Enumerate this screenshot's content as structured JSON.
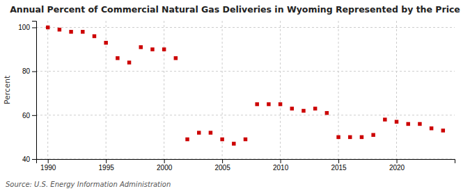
{
  "chart_data": {
    "type": "scatter",
    "title": "Annual Percent of Commercial Natural Gas Deliveries in Wyoming Represented by the Price",
    "ylabel": "Percent",
    "source": "Source: U.S. Energy Information Administration",
    "x": [
      1990,
      1991,
      1992,
      1993,
      1994,
      1995,
      1996,
      1997,
      1998,
      1999,
      2000,
      2001,
      2002,
      2003,
      2004,
      2005,
      2006,
      2007,
      2008,
      2009,
      2010,
      2011,
      2012,
      2013,
      2014,
      2015,
      2016,
      2017,
      2018,
      2019,
      2020,
      2021,
      2022,
      2023,
      2024
    ],
    "values": [
      100,
      99,
      98,
      98,
      96,
      93,
      86,
      84,
      91,
      90,
      90,
      86,
      49,
      52,
      52,
      49,
      47,
      49,
      65,
      65,
      65,
      63,
      62,
      63,
      61,
      50,
      50,
      50,
      51,
      58,
      57,
      56,
      56,
      54,
      53
    ],
    "color": "#cc0000",
    "marker": "square",
    "xlim": [
      1989,
      2025
    ],
    "ylim": [
      40,
      103
    ],
    "xticks": [
      1990,
      1995,
      2000,
      2005,
      2010,
      2015,
      2020
    ],
    "yticks": [
      40,
      60,
      80,
      100
    ],
    "grid": true
  }
}
